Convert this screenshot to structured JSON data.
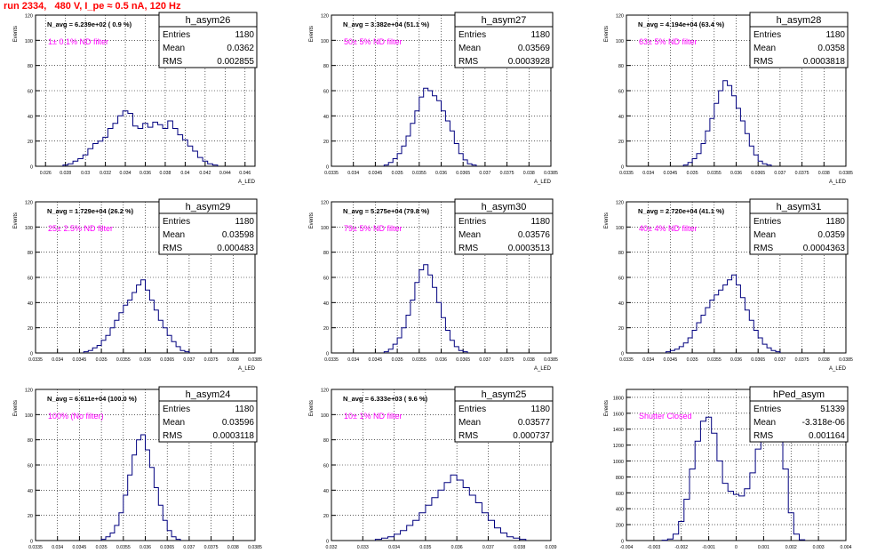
{
  "page": {
    "title": "run 2334,   480 V, I_pe ≈ 0.5 nA, 120 Hz"
  },
  "common": {
    "ylabel": "Events",
    "xlabel": "A_LED",
    "stat_labels": [
      "Entries",
      "Mean",
      "RMS"
    ],
    "colors": {
      "histogram": "#00007f",
      "filter_label": "#ff00ff",
      "grid": "#000000",
      "title": "#ff0000"
    }
  },
  "chart_data": [
    {
      "type": "bar",
      "histogram": "h_asym26",
      "navg": "N_avg = 6.239e+02 ( 0.9 %)",
      "filter": "1± 0.1% ND filter",
      "stats": {
        "entries": "1180",
        "mean": "0.0362",
        "rms": "0.002855"
      },
      "xlim": [
        0.025,
        0.047
      ],
      "ylim": [
        0,
        120
      ],
      "xticks": [
        "0.026",
        "0.028",
        "0.03",
        "0.032",
        "0.034",
        "0.036",
        "0.038",
        "0.04",
        "0.042",
        "0.044",
        "0.046"
      ],
      "yticks": [
        "0",
        "20",
        "40",
        "60",
        "80",
        "100",
        "120"
      ],
      "x": [
        0.028,
        0.0285,
        0.029,
        0.0295,
        0.03,
        0.0305,
        0.031,
        0.0315,
        0.032,
        0.0325,
        0.033,
        0.0335,
        0.034,
        0.0345,
        0.035,
        0.0355,
        0.036,
        0.0365,
        0.037,
        0.0375,
        0.038,
        0.0385,
        0.039,
        0.0395,
        0.04,
        0.0405,
        0.041,
        0.0415,
        0.042,
        0.0425,
        0.043
      ],
      "values": [
        1,
        2,
        4,
        6,
        9,
        14,
        18,
        20,
        23,
        30,
        34,
        40,
        44,
        42,
        32,
        30,
        34,
        31,
        35,
        33,
        30,
        36,
        30,
        25,
        21,
        16,
        12,
        7,
        4,
        2,
        1
      ]
    },
    {
      "type": "bar",
      "histogram": "h_asym27",
      "navg": "N_avg = 3.382e+04 (51.1 %)",
      "filter": "50± 5% ND filter",
      "stats": {
        "entries": "1180",
        "mean": "0.03569",
        "rms": "0.0003928"
      },
      "xlim": [
        0.0335,
        0.0385
      ],
      "ylim": [
        0,
        120
      ],
      "xticks": [
        "0.0335",
        "0.034",
        "0.0345",
        "0.035",
        "0.0355",
        "0.036",
        "0.0365",
        "0.037",
        "0.0375",
        "0.038",
        "0.0385"
      ],
      "yticks": [
        "0",
        "20",
        "40",
        "60",
        "80",
        "100",
        "120"
      ],
      "x": [
        0.03475,
        0.03485,
        0.03495,
        0.03505,
        0.03515,
        0.03525,
        0.03535,
        0.03545,
        0.03555,
        0.03565,
        0.03575,
        0.03585,
        0.03595,
        0.03605,
        0.03615,
        0.03625,
        0.03635,
        0.03645,
        0.03655,
        0.03665,
        0.03675
      ],
      "values": [
        1,
        3,
        6,
        10,
        16,
        24,
        34,
        44,
        55,
        62,
        60,
        56,
        52,
        44,
        36,
        28,
        18,
        10,
        5,
        2,
        1
      ]
    },
    {
      "type": "bar",
      "histogram": "h_asym28",
      "navg": "N_avg = 4.194e+04 (63.4 %)",
      "filter": "63± 5% ND filter",
      "stats": {
        "entries": "1180",
        "mean": "0.0358",
        "rms": "0.0003818"
      },
      "xlim": [
        0.0335,
        0.0385
      ],
      "ylim": [
        0,
        120
      ],
      "xticks": [
        "0.0335",
        "0.034",
        "0.0345",
        "0.035",
        "0.0355",
        "0.036",
        "0.0365",
        "0.037",
        "0.0375",
        "0.038",
        "0.0385"
      ],
      "yticks": [
        "0",
        "20",
        "40",
        "60",
        "80",
        "100",
        "120"
      ],
      "x": [
        0.03485,
        0.03495,
        0.03505,
        0.03515,
        0.03525,
        0.03535,
        0.03545,
        0.03555,
        0.03565,
        0.03575,
        0.03585,
        0.03595,
        0.03605,
        0.03615,
        0.03625,
        0.03635,
        0.03645,
        0.03655,
        0.03665,
        0.03675
      ],
      "values": [
        1,
        3,
        6,
        10,
        18,
        28,
        38,
        50,
        60,
        68,
        64,
        56,
        46,
        36,
        26,
        16,
        9,
        4,
        2,
        1
      ]
    },
    {
      "type": "bar",
      "histogram": "h_asym29",
      "navg": "N_avg = 1.729e+04 (26.2 %)",
      "filter": "25± 2.5% ND filter",
      "stats": {
        "entries": "1180",
        "mean": "0.03598",
        "rms": "0.000483"
      },
      "xlim": [
        0.0335,
        0.0385
      ],
      "ylim": [
        0,
        120
      ],
      "xticks": [
        "0.0335",
        "0.034",
        "0.0345",
        "0.035",
        "0.0355",
        "0.036",
        "0.0365",
        "0.037",
        "0.0375",
        "0.038",
        "0.0385"
      ],
      "yticks": [
        "0",
        "20",
        "40",
        "60",
        "80",
        "100",
        "120"
      ],
      "x": [
        0.03465,
        0.03475,
        0.03485,
        0.03495,
        0.03505,
        0.03515,
        0.03525,
        0.03535,
        0.03545,
        0.03555,
        0.03565,
        0.03575,
        0.03585,
        0.03595,
        0.03605,
        0.03615,
        0.03625,
        0.03635,
        0.03645,
        0.03655,
        0.03665,
        0.03675,
        0.03685,
        0.03695
      ],
      "values": [
        1,
        2,
        4,
        6,
        10,
        14,
        20,
        26,
        32,
        38,
        42,
        48,
        54,
        58,
        50,
        42,
        34,
        26,
        20,
        14,
        9,
        5,
        2,
        1
      ]
    },
    {
      "type": "bar",
      "histogram": "h_asym30",
      "navg": "N_avg = 5.275e+04 (79.8 %)",
      "filter": "79± 5% ND filter",
      "stats": {
        "entries": "1180",
        "mean": "0.03576",
        "rms": "0.0003513"
      },
      "xlim": [
        0.0335,
        0.0385
      ],
      "ylim": [
        0,
        120
      ],
      "xticks": [
        "0.0335",
        "0.034",
        "0.0345",
        "0.035",
        "0.0355",
        "0.036",
        "0.0365",
        "0.037",
        "0.0375",
        "0.038",
        "0.0385"
      ],
      "yticks": [
        "0",
        "20",
        "40",
        "60",
        "80",
        "100",
        "120"
      ],
      "x": [
        0.03475,
        0.03485,
        0.03495,
        0.03505,
        0.03515,
        0.03525,
        0.03535,
        0.03545,
        0.03555,
        0.03565,
        0.03575,
        0.03585,
        0.03595,
        0.03605,
        0.03615,
        0.03625,
        0.03635,
        0.03645,
        0.03655
      ],
      "values": [
        1,
        3,
        7,
        12,
        20,
        30,
        42,
        56,
        66,
        70,
        62,
        52,
        40,
        28,
        18,
        10,
        5,
        2,
        1
      ]
    },
    {
      "type": "bar",
      "histogram": "h_asym31",
      "navg": "N_avg = 2.720e+04 (41.1 %)",
      "filter": "40± 4% ND filter",
      "stats": {
        "entries": "1180",
        "mean": "0.0359",
        "rms": "0.0004363"
      },
      "xlim": [
        0.0335,
        0.0385
      ],
      "ylim": [
        0,
        120
      ],
      "xticks": [
        "0.0335",
        "0.034",
        "0.0345",
        "0.035",
        "0.0355",
        "0.036",
        "0.0365",
        "0.037",
        "0.0375",
        "0.038",
        "0.0385"
      ],
      "yticks": [
        "0",
        "20",
        "40",
        "60",
        "80",
        "100",
        "120"
      ],
      "x": [
        0.03445,
        0.03455,
        0.03465,
        0.03475,
        0.03485,
        0.03495,
        0.03505,
        0.03515,
        0.03525,
        0.03535,
        0.03545,
        0.03555,
        0.03565,
        0.03575,
        0.03585,
        0.03595,
        0.03605,
        0.03615,
        0.03625,
        0.03635,
        0.03645,
        0.03655,
        0.03665,
        0.03675,
        0.03685,
        0.03695
      ],
      "values": [
        1,
        2,
        3,
        5,
        8,
        12,
        18,
        24,
        30,
        36,
        42,
        46,
        50,
        54,
        58,
        62,
        54,
        44,
        34,
        26,
        18,
        12,
        7,
        4,
        2,
        1
      ]
    },
    {
      "type": "bar",
      "histogram": "h_asym24",
      "navg": "N_avg = 6.611e+04 (100.0 %)",
      "filter": "100% (No filter)",
      "stats": {
        "entries": "1180",
        "mean": "0.03596",
        "rms": "0.0003118"
      },
      "xlim": [
        0.0335,
        0.0385
      ],
      "ylim": [
        0,
        120
      ],
      "xticks": [
        "0.0335",
        "0.034",
        "0.0345",
        "0.035",
        "0.0355",
        "0.036",
        "0.0365",
        "0.037",
        "0.0375",
        "0.038",
        "0.0385"
      ],
      "yticks": [
        "0",
        "20",
        "40",
        "60",
        "80",
        "100",
        "120"
      ],
      "x": [
        0.03505,
        0.03515,
        0.03525,
        0.03535,
        0.03545,
        0.03555,
        0.03565,
        0.03575,
        0.03585,
        0.03595,
        0.03605,
        0.03615,
        0.03625,
        0.03635,
        0.03645,
        0.03655,
        0.03665,
        0.03675
      ],
      "values": [
        1,
        3,
        6,
        12,
        22,
        36,
        52,
        68,
        80,
        84,
        72,
        58,
        42,
        28,
        16,
        8,
        3,
        1
      ]
    },
    {
      "type": "bar",
      "histogram": "h_asym25",
      "navg": "N_avg = 6.333e+03 ( 9.6 %)",
      "filter": "10± 1% ND filter",
      "stats": {
        "entries": "1180",
        "mean": "0.03577",
        "rms": "0.000737"
      },
      "xlim": [
        0.032,
        0.039
      ],
      "ylim": [
        0,
        120
      ],
      "xticks": [
        "0.032",
        "0.033",
        "0.034",
        "0.035",
        "0.036",
        "0.037",
        "0.038",
        "0.039"
      ],
      "yticks": [
        "0",
        "20",
        "40",
        "60",
        "80",
        "100",
        "120"
      ],
      "x": [
        0.0335,
        0.0337,
        0.0339,
        0.0341,
        0.0343,
        0.0345,
        0.0347,
        0.0349,
        0.0351,
        0.0353,
        0.0355,
        0.0357,
        0.0359,
        0.0361,
        0.0363,
        0.0365,
        0.0367,
        0.0369,
        0.0371,
        0.0373,
        0.0375,
        0.0377,
        0.0379,
        0.0381
      ],
      "values": [
        1,
        2,
        3,
        5,
        8,
        12,
        16,
        22,
        28,
        34,
        40,
        46,
        52,
        48,
        42,
        36,
        30,
        22,
        16,
        10,
        6,
        3,
        2,
        1
      ]
    },
    {
      "type": "bar",
      "histogram": "hPed_asym",
      "navg": "",
      "filter": "Shutter Closed",
      "stats": {
        "entries": "51339",
        "mean": "-3.318e-06",
        "rms": "0.001164"
      },
      "xlim": [
        -0.004,
        0.004
      ],
      "ylim": [
        0,
        1900
      ],
      "xticks": [
        "-0.004",
        "-0.003",
        "-0.002",
        "-0.001",
        "0",
        "0.001",
        "0.002",
        "0.003",
        "0.004"
      ],
      "yticks": [
        "0",
        "200",
        "400",
        "600",
        "800",
        "1000",
        "1200",
        "1400",
        "1600",
        "1800"
      ],
      "x": [
        -0.0026,
        -0.0024,
        -0.0022,
        -0.002,
        -0.0018,
        -0.0016,
        -0.0014,
        -0.0012,
        -0.001,
        -0.0008,
        -0.0006,
        -0.0004,
        -0.0002,
        0.0,
        0.0002,
        0.0004,
        0.0006,
        0.0008,
        0.001,
        0.0012,
        0.0014,
        0.0016,
        0.0018,
        0.002,
        0.0022,
        0.0024
      ],
      "values": [
        5,
        20,
        80,
        240,
        520,
        900,
        1250,
        1500,
        1550,
        1350,
        1000,
        720,
        620,
        580,
        560,
        650,
        850,
        1150,
        1450,
        1700,
        1820,
        1500,
        900,
        350,
        80,
        10
      ]
    }
  ]
}
